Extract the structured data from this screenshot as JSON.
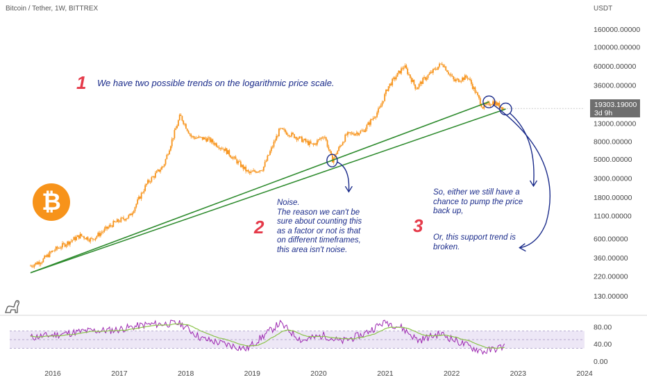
{
  "header": {
    "title": "Bitcoin / Tether, 1W, BITTREX"
  },
  "price_axis": {
    "unit": "USDT",
    "ticks": [
      "160000.00000",
      "100000.00000",
      "60000.00000",
      "36000.00000",
      "22000.00000",
      "13000.00000",
      "8000.00000",
      "5000.00000",
      "3000.00000",
      "1800.00000",
      "1100.00000",
      "600.00000",
      "360.00000",
      "220.00000",
      "130.00000"
    ]
  },
  "current_price": {
    "value": "19303.19000",
    "countdown": "3d 9h"
  },
  "rsi_axis": {
    "ticks": [
      "80.00",
      "40.00",
      "0.00"
    ]
  },
  "time_axis": {
    "ticks": [
      "2016",
      "2017",
      "2018",
      "2019",
      "2020",
      "2021",
      "2022",
      "2023",
      "2024"
    ]
  },
  "annotations": {
    "n1": "1",
    "t1": "We have two possible trends on the logarithmic price scale.",
    "n2": "2",
    "t2": "Noise.\nThe reason we can't be\nsure about counting this\nas a factor or not is that\non different timeframes,\nthis area isn't noise.",
    "n3": "3",
    "t3a": "So, either we still have a\nchance to pump the price\nback up,",
    "t3b": "Or, this support trend is\nbroken."
  },
  "colors": {
    "candles": "#f7931a",
    "trendlines": "#2e8b2e",
    "annotation_text": "#1a2b8a",
    "annotation_number": "#e53a4a",
    "rsi_line": "#9c27b0",
    "rsi_ma": "#8bc34a",
    "rsi_band": "#ede7f6"
  },
  "logo": {
    "symbol": "₿"
  },
  "chart_data": {
    "type": "line",
    "scale": "log",
    "title": "Bitcoin / Tether, 1W, BITTREX",
    "ylabel": "USDT",
    "ylim": [
      100,
      200000
    ],
    "xlim": [
      "2015-09-01",
      "2024-01-01"
    ],
    "series": [
      {
        "name": "BTC/USDT",
        "x": [
          "2015-09-01",
          "2015-11-01",
          "2016-01-01",
          "2016-06-01",
          "2016-08-01",
          "2016-12-01",
          "2017-03-01",
          "2017-06-01",
          "2017-09-01",
          "2017-12-01",
          "2018-02-01",
          "2018-05-01",
          "2018-08-01",
          "2018-11-01",
          "2018-12-15",
          "2019-03-01",
          "2019-06-01",
          "2019-09-01",
          "2019-12-01",
          "2020-02-01",
          "2020-03-15",
          "2020-06-01",
          "2020-09-01",
          "2020-12-01",
          "2021-01-15",
          "2021-04-15",
          "2021-06-20",
          "2021-08-01",
          "2021-11-10",
          "2022-01-15",
          "2022-03-30",
          "2022-05-15",
          "2022-06-20",
          "2022-08-15",
          "2022-10-15"
        ],
        "values": [
          290,
          330,
          430,
          650,
          580,
          900,
          1100,
          2600,
          4200,
          16000,
          9000,
          8500,
          6500,
          4200,
          3400,
          3900,
          11000,
          9000,
          7200,
          9500,
          4800,
          9500,
          10500,
          19000,
          34000,
          60000,
          33000,
          42000,
          65000,
          40000,
          45000,
          29000,
          20000,
          23000,
          19303
        ]
      }
    ],
    "trendlines": [
      {
        "x": [
          "2015-09-01",
          "2022-07-25"
        ],
        "values": [
          240,
          23000
        ]
      },
      {
        "x": [
          "2015-09-01",
          "2022-10-25"
        ],
        "values": [
          240,
          19000
        ]
      }
    ],
    "rsi": {
      "ylim": [
        0,
        100
      ],
      "band": [
        30,
        70
      ],
      "x": [
        "2015-09-01",
        "2016-02-01",
        "2016-07-01",
        "2016-12-01",
        "2017-06-01",
        "2017-12-01",
        "2018-04-01",
        "2018-08-01",
        "2018-12-01",
        "2019-06-01",
        "2019-10-01",
        "2020-02-01",
        "2020-05-01",
        "2020-09-01",
        "2021-01-01",
        "2021-04-01",
        "2021-07-01",
        "2021-11-01",
        "2022-02-01",
        "2022-05-01",
        "2022-07-01",
        "2022-10-20"
      ],
      "values": [
        55,
        62,
        70,
        72,
        85,
        88,
        52,
        40,
        28,
        88,
        48,
        60,
        45,
        62,
        92,
        78,
        48,
        64,
        46,
        30,
        22,
        35
      ]
    },
    "ticks_x": [
      "2016",
      "2017",
      "2018",
      "2019",
      "2020",
      "2021",
      "2022",
      "2023",
      "2024"
    ]
  }
}
